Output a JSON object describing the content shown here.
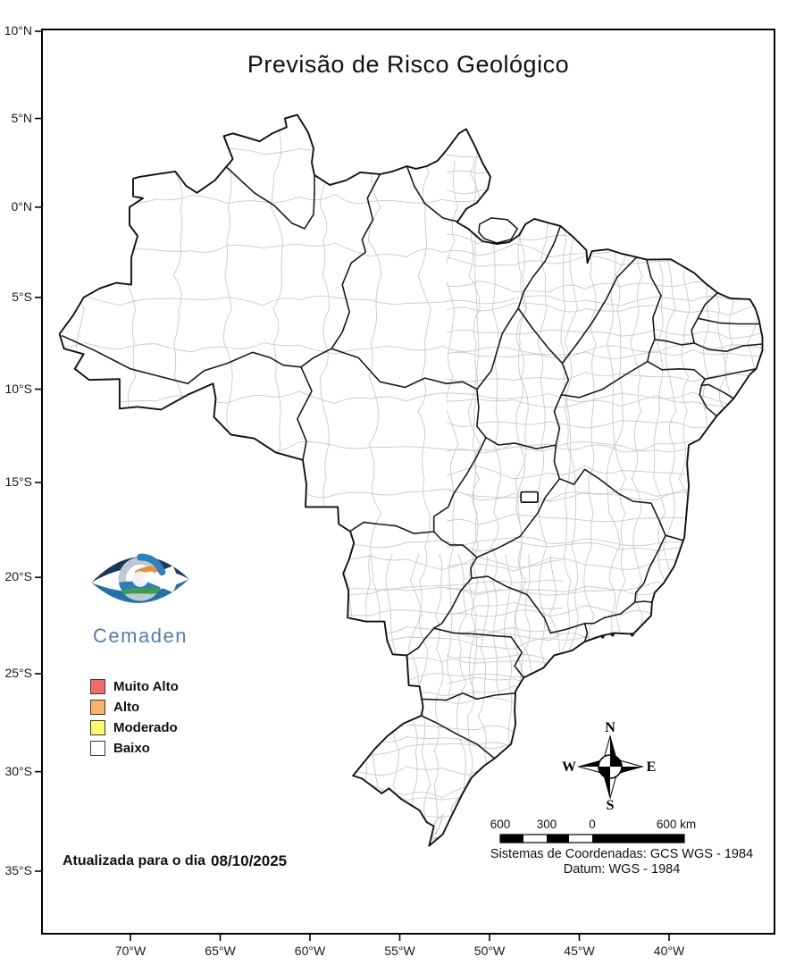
{
  "title": "Previsão de Risco Geológico",
  "branding": {
    "name": "Cemaden"
  },
  "legend": {
    "items": [
      {
        "label": "Muito Alto",
        "color": "#f4696b"
      },
      {
        "label": "Alto",
        "color": "#fbb168"
      },
      {
        "label": "Moderado",
        "color": "#fbfb66"
      },
      {
        "label": "Baixo",
        "color": "#ffffff"
      }
    ]
  },
  "update_note": {
    "prefix": "Atualizada para o dia",
    "date": "08/10/2025"
  },
  "axes": {
    "latitude_labels": [
      "10°N",
      "5°N",
      "0°N",
      "5°S",
      "10°S",
      "15°S",
      "20°S",
      "25°S",
      "30°S",
      "35°S"
    ],
    "longitude_labels": [
      "70°W",
      "65°W",
      "60°W",
      "55°W",
      "50°W",
      "45°W",
      "40°W"
    ]
  },
  "scale_bar": {
    "labels": [
      "600",
      "300",
      "0",
      "600 km"
    ]
  },
  "compass": {
    "north": "N",
    "south": "S",
    "east": "E",
    "west": "W"
  },
  "footer": {
    "coordinate_system": "Sistemas de Coordenadas: GCS WGS - 1984",
    "datum": "Datum: WGS - 1984"
  },
  "map": {
    "country": "Brasil",
    "state_border_color": "#1a1a1a",
    "municipality_border_color": "#c9c9c9",
    "projection_note": "GCS WGS 1984"
  }
}
